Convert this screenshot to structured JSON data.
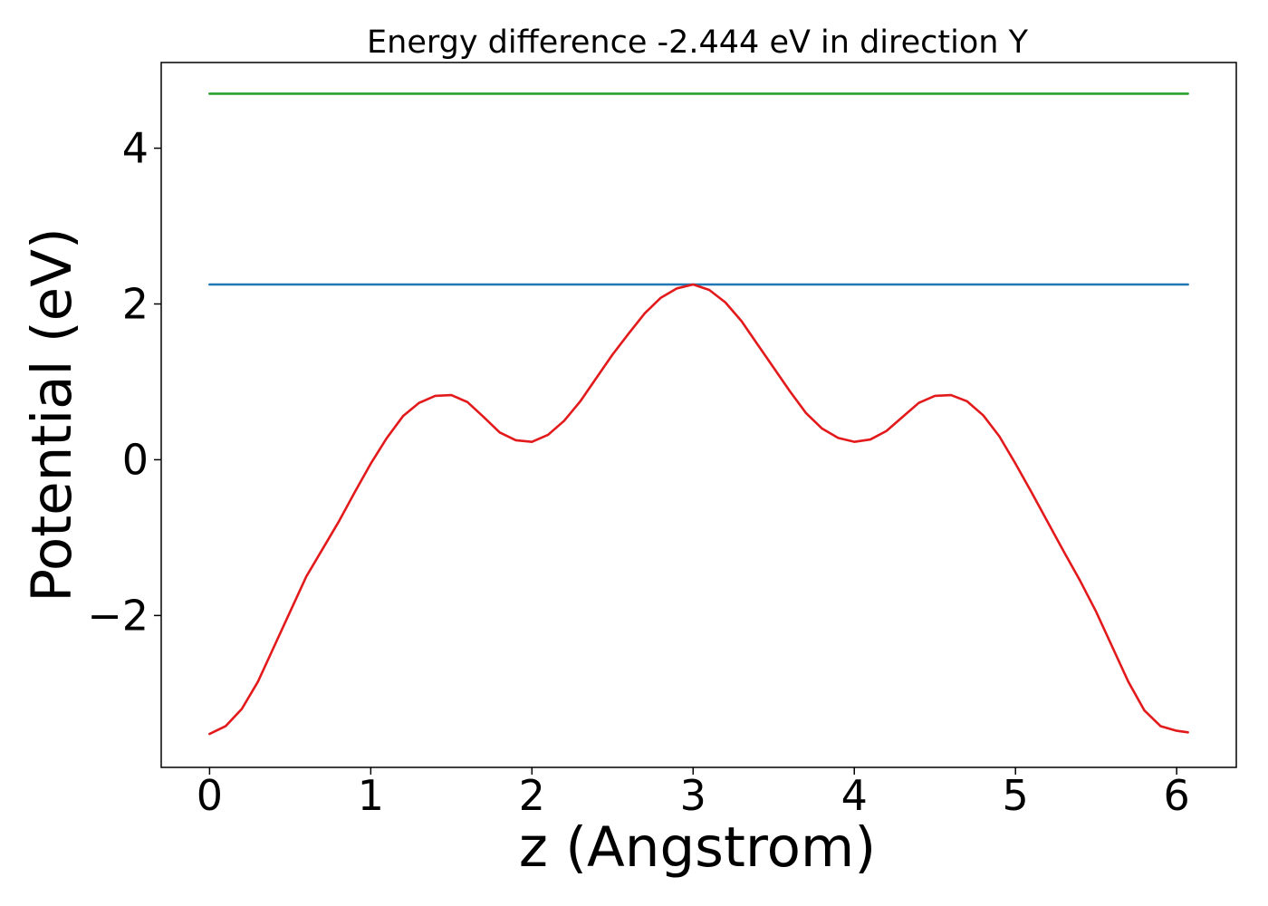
{
  "chart_data": {
    "type": "line",
    "title": "Energy difference -2.444 eV in direction Y",
    "xlabel": "z (Angstrom)",
    "ylabel": "Potential (eV)",
    "xlim": [
      -0.3,
      6.37
    ],
    "ylim": [
      -3.95,
      5.1
    ],
    "xticks": [
      0,
      1,
      2,
      3,
      4,
      5,
      6
    ],
    "xtick_labels": [
      "0",
      "1",
      "2",
      "3",
      "4",
      "5",
      "6"
    ],
    "yticks": [
      -2,
      0,
      2,
      4
    ],
    "ytick_labels": [
      "−2",
      "0",
      "2",
      "4"
    ],
    "grid": false,
    "legend": "none",
    "series": [
      {
        "color": "#1f77b4",
        "x": [
          0,
          6.07
        ],
        "y": [
          2.25,
          2.25
        ]
      },
      {
        "color": "#2ca02c",
        "x": [
          0,
          6.07
        ],
        "y": [
          4.7,
          4.7
        ]
      },
      {
        "color": "#e31a1c",
        "x": [
          0,
          0.1,
          0.2,
          0.3,
          0.4,
          0.5,
          0.6,
          0.7,
          0.8,
          0.9,
          1.0,
          1.1,
          1.2,
          1.3,
          1.4,
          1.5,
          1.6,
          1.7,
          1.8,
          1.9,
          2.0,
          2.1,
          2.2,
          2.3,
          2.4,
          2.5,
          2.6,
          2.7,
          2.8,
          2.9,
          3.0,
          3.1,
          3.2,
          3.3,
          3.4,
          3.5,
          3.6,
          3.7,
          3.8,
          3.9,
          4.0,
          4.1,
          4.2,
          4.3,
          4.4,
          4.5,
          4.6,
          4.7,
          4.8,
          4.9,
          5.0,
          5.1,
          5.2,
          5.3,
          5.4,
          5.5,
          5.6,
          5.7,
          5.8,
          5.9,
          6.0,
          6.07
        ],
        "y": [
          -3.52,
          -3.42,
          -3.2,
          -2.85,
          -2.4,
          -1.95,
          -1.5,
          -1.15,
          -0.8,
          -0.42,
          -0.05,
          0.28,
          0.56,
          0.73,
          0.82,
          0.83,
          0.74,
          0.55,
          0.35,
          0.25,
          0.23,
          0.32,
          0.5,
          0.75,
          1.05,
          1.35,
          1.62,
          1.88,
          2.08,
          2.2,
          2.25,
          2.18,
          2.02,
          1.78,
          1.48,
          1.18,
          0.88,
          0.6,
          0.4,
          0.28,
          0.23,
          0.26,
          0.37,
          0.55,
          0.73,
          0.82,
          0.83,
          0.75,
          0.57,
          0.3,
          -0.05,
          -0.42,
          -0.8,
          -1.18,
          -1.55,
          -1.95,
          -2.4,
          -2.85,
          -3.22,
          -3.42,
          -3.48,
          -3.5
        ]
      }
    ]
  }
}
